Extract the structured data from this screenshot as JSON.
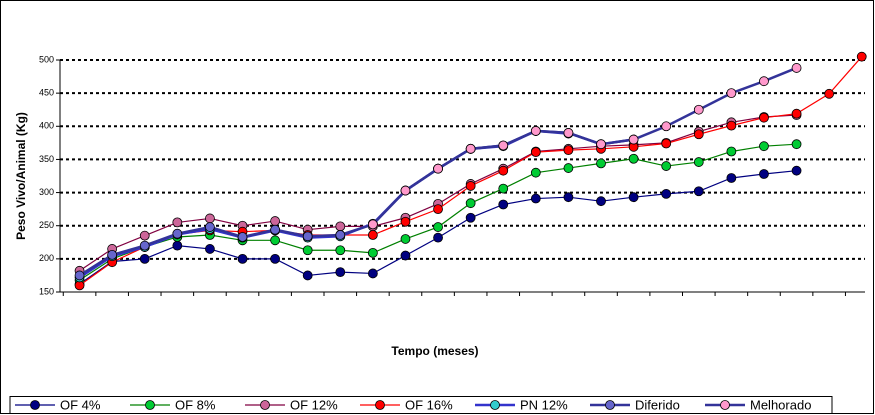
{
  "chart_data": {
    "type": "line",
    "x_label": "Tempo (meses)",
    "y_label": "Peso Vivo/Animal (Kg)",
    "categories": [
      null,
      null,
      null,
      null,
      null,
      null,
      null,
      null,
      null,
      null,
      null,
      null,
      null,
      null,
      null,
      null,
      null,
      null,
      null,
      null,
      null,
      null,
      null,
      null,
      null
    ],
    "ylim": [
      150,
      500
    ],
    "yticks": [
      150,
      200,
      250,
      300,
      350,
      400,
      450,
      500
    ],
    "grid": true,
    "legend": "bottom",
    "series": [
      {
        "name": "OF 4%",
        "color": "#000080",
        "marker_color": "#000080",
        "values": [
          162,
          196,
          200,
          220,
          215,
          200,
          200,
          175,
          180,
          178,
          205,
          232,
          262,
          282,
          291,
          293,
          287,
          293,
          298,
          302,
          322,
          328,
          333,
          null,
          null
        ]
      },
      {
        "name": "OF 8%",
        "color": "#008000",
        "marker_color": "#00cc33",
        "values": [
          168,
          200,
          218,
          233,
          236,
          228,
          228,
          213,
          213,
          209,
          230,
          248,
          284,
          306,
          330,
          337,
          344,
          351,
          340,
          346,
          362,
          370,
          373,
          null,
          null
        ]
      },
      {
        "name": "OF 12%",
        "color": "#800040",
        "marker_color": "#cc6699",
        "values": [
          182,
          215,
          235,
          255,
          261,
          250,
          257,
          244,
          249,
          249,
          262,
          283,
          313,
          336,
          362,
          366,
          370,
          372,
          375,
          392,
          406,
          414,
          417,
          null,
          null
        ]
      },
      {
        "name": "OF 16%",
        "color": "#ff0000",
        "marker_color": "#ff0000",
        "values": [
          160,
          195,
          218,
          237,
          243,
          241,
          243,
          236,
          236,
          236,
          256,
          275,
          310,
          333,
          361,
          364,
          366,
          369,
          374,
          388,
          401,
          413,
          419,
          449,
          505
        ]
      },
      {
        "name": "PN 12%",
        "color": "#3333cc",
        "marker_color": "#33cccc",
        "values": [
          172,
          204,
          218,
          237,
          245,
          232,
          243,
          232,
          234,
          253,
          303,
          336,
          366,
          370,
          393,
          389,
          null,
          null,
          null,
          null,
          null,
          null,
          null,
          null,
          null
        ]
      },
      {
        "name": "Diferido",
        "color": "#333399",
        "marker_color": "#6666cc",
        "values": [
          175,
          206,
          220,
          238,
          248,
          233,
          244,
          234,
          236,
          252,
          303,
          336,
          366,
          371,
          393,
          390,
          373,
          380,
          null,
          null,
          null,
          null,
          null,
          null,
          null
        ]
      },
      {
        "name": "Melhorado",
        "color": "#333399",
        "marker_color": "#ff99cc",
        "values": [
          null,
          null,
          null,
          null,
          null,
          null,
          null,
          null,
          null,
          252,
          303,
          336,
          366,
          371,
          393,
          390,
          373,
          380,
          400,
          425,
          450,
          468,
          488,
          null,
          null
        ]
      }
    ]
  }
}
